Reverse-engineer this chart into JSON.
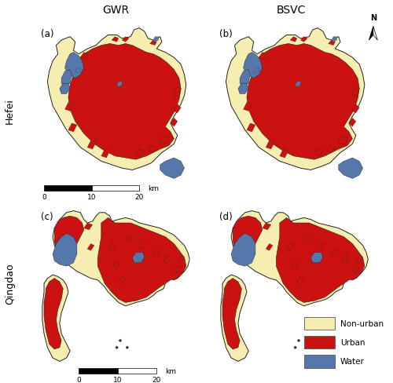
{
  "title_top_left": "GWR",
  "title_top_right": "BSVC",
  "label_left_top": "Hefei",
  "label_left_bottom": "Qingdao",
  "panel_labels": [
    "(a)",
    "(b)",
    "(c)",
    "(d)"
  ],
  "legend_labels": [
    "Non-urban",
    "Urban",
    "Water"
  ],
  "colors": {
    "non_urban": "#F5EEB0",
    "urban": "#CC1111",
    "water": "#5577AA",
    "border": "#222222",
    "background": "#FFFFFF"
  },
  "figsize": [
    5.0,
    4.89
  ],
  "dpi": 100
}
